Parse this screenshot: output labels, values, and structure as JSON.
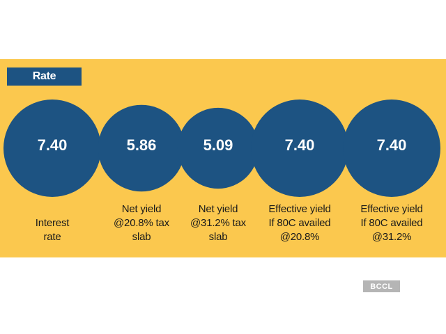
{
  "header": {
    "tag": "Rate"
  },
  "chart_data": {
    "type": "bubble",
    "categories": [
      "Interest rate",
      "Net yield @20.8% tax slab",
      "Net yield @31.2% tax slab",
      "Effective yield If 80C availed @20.8%",
      "Effective yield If 80C availed @31.2%"
    ],
    "values": [
      "7.40",
      "5.86",
      "5.09",
      "7.40",
      "7.40"
    ],
    "label_lines": [
      [
        "Interest",
        "rate"
      ],
      [
        "Net yield",
        "@20.8% tax",
        "slab"
      ],
      [
        "Net yield",
        "@31.2% tax",
        "slab"
      ],
      [
        "Effective yield",
        "If 80C availed",
        "@20.8%"
      ],
      [
        "Effective yield",
        "If 80C availed",
        "@31.2%"
      ]
    ],
    "colors": {
      "bubble": "#1d5382",
      "background": "#fbc84e",
      "value_text": "#ffffff"
    }
  },
  "footer": {
    "brand": "BCCL"
  }
}
